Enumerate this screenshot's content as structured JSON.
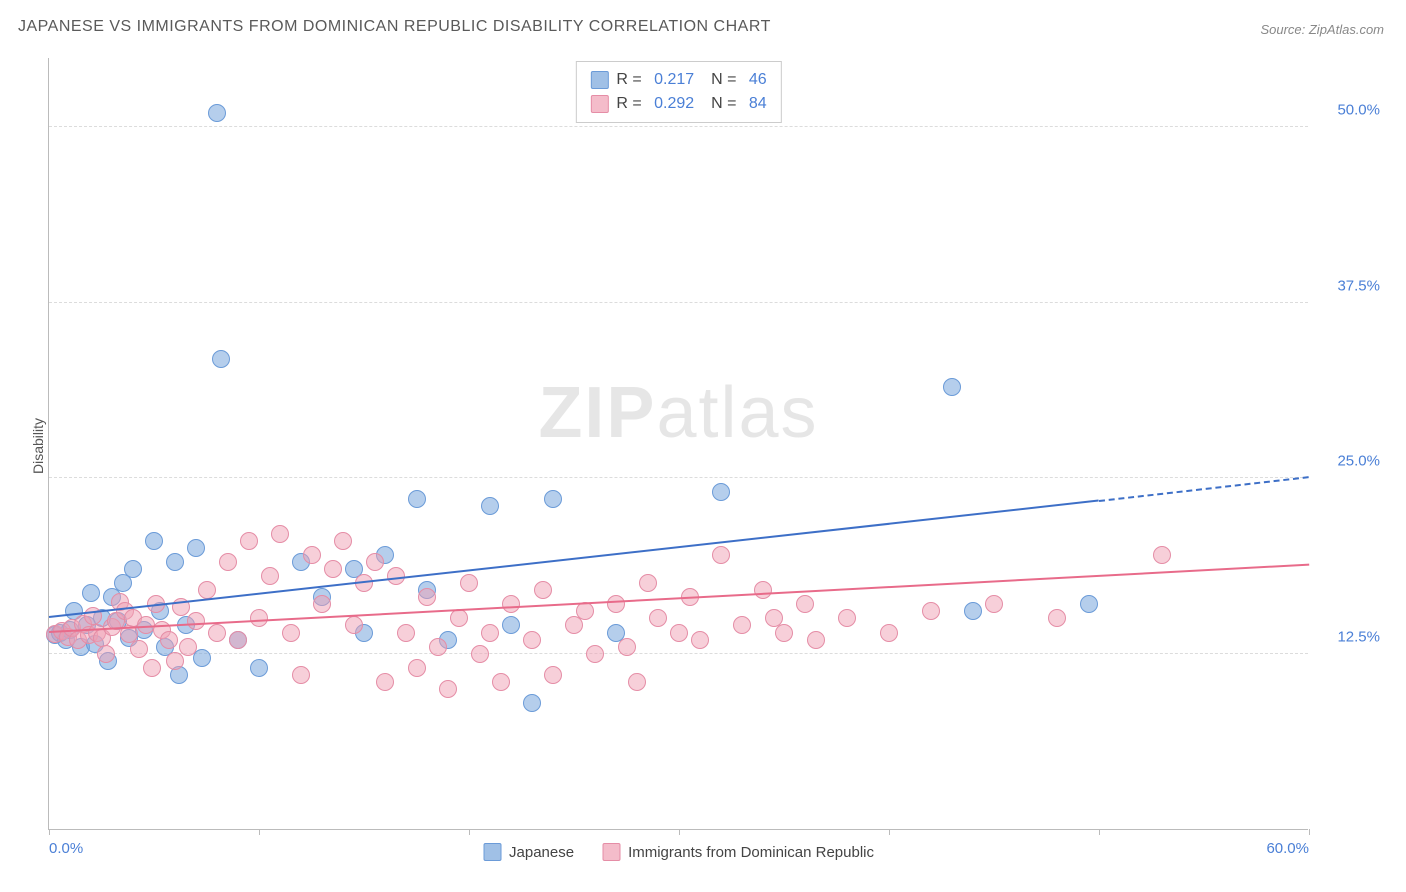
{
  "title": "JAPANESE VS IMMIGRANTS FROM DOMINICAN REPUBLIC DISABILITY CORRELATION CHART",
  "source": "Source: ZipAtlas.com",
  "ylabel": "Disability",
  "watermark": {
    "bold": "ZIP",
    "rest": "atlas"
  },
  "chart": {
    "type": "scatter",
    "background_color": "#ffffff",
    "grid_color": "#dcdcdc",
    "axis_color": "#bbbbbb",
    "label_color": "#4a7fd6",
    "xlim": [
      0,
      60
    ],
    "ylim": [
      0,
      55
    ],
    "x_ticks": [
      0,
      10,
      20,
      30,
      40,
      50,
      60
    ],
    "x_tick_labels": [
      "0.0%",
      "",
      "",
      "",
      "",
      "",
      "60.0%"
    ],
    "y_grid": [
      12.5,
      25.0,
      37.5,
      50.0
    ],
    "y_tick_labels": [
      "12.5%",
      "25.0%",
      "37.5%",
      "50.0%"
    ],
    "marker_radius": 9,
    "series": [
      {
        "key": "japanese",
        "label": "Japanese",
        "color_fill": "rgba(120,165,220,0.55)",
        "color_stroke": "#6b9bd8",
        "trend_color": "#3d6fc7",
        "R": "0.217",
        "N": "46",
        "trend": {
          "x0": 0,
          "y0": 15.0,
          "x1": 50,
          "y1": 23.3,
          "x_dash_from": 50,
          "x_dash_to": 60,
          "y_dash_to": 25.0
        },
        "points": [
          [
            0.3,
            13.8
          ],
          [
            0.5,
            14.0
          ],
          [
            0.8,
            13.5
          ],
          [
            1.0,
            14.2
          ],
          [
            1.2,
            15.5
          ],
          [
            1.5,
            13.0
          ],
          [
            1.8,
            14.5
          ],
          [
            2.0,
            16.8
          ],
          [
            2.2,
            13.2
          ],
          [
            2.5,
            15.0
          ],
          [
            2.8,
            12.0
          ],
          [
            3.0,
            16.5
          ],
          [
            3.3,
            14.8
          ],
          [
            3.5,
            17.5
          ],
          [
            3.8,
            13.6
          ],
          [
            4.0,
            18.5
          ],
          [
            4.5,
            14.2
          ],
          [
            5.0,
            20.5
          ],
          [
            5.3,
            15.5
          ],
          [
            5.5,
            13.0
          ],
          [
            6.0,
            19.0
          ],
          [
            6.2,
            11.0
          ],
          [
            6.5,
            14.5
          ],
          [
            7.0,
            20.0
          ],
          [
            7.3,
            12.2
          ],
          [
            8.0,
            51.0
          ],
          [
            8.2,
            33.5
          ],
          [
            9.0,
            13.5
          ],
          [
            10.0,
            11.5
          ],
          [
            12.0,
            19.0
          ],
          [
            13.0,
            16.5
          ],
          [
            14.5,
            18.5
          ],
          [
            15.0,
            14.0
          ],
          [
            16.0,
            19.5
          ],
          [
            17.5,
            23.5
          ],
          [
            18.0,
            17.0
          ],
          [
            19.0,
            13.5
          ],
          [
            21.0,
            23.0
          ],
          [
            22.0,
            14.5
          ],
          [
            23.0,
            9.0
          ],
          [
            24.0,
            23.5
          ],
          [
            27.0,
            14.0
          ],
          [
            32.0,
            24.0
          ],
          [
            43.0,
            31.5
          ],
          [
            44.0,
            15.5
          ],
          [
            49.5,
            16.0
          ]
        ]
      },
      {
        "key": "dominican",
        "label": "Immigrants from Dominican Republic",
        "color_fill": "rgba(240,160,180,0.50)",
        "color_stroke": "#e58da6",
        "trend_color": "#e86b8a",
        "R": "0.292",
        "N": "84",
        "trend": {
          "x0": 0,
          "y0": 14.0,
          "x1": 60,
          "y1": 18.8
        },
        "points": [
          [
            0.3,
            13.9
          ],
          [
            0.6,
            14.1
          ],
          [
            0.9,
            13.7
          ],
          [
            1.1,
            14.3
          ],
          [
            1.4,
            13.5
          ],
          [
            1.6,
            14.6
          ],
          [
            1.9,
            13.8
          ],
          [
            2.1,
            15.2
          ],
          [
            2.3,
            14.0
          ],
          [
            2.5,
            13.6
          ],
          [
            2.7,
            12.5
          ],
          [
            3.0,
            14.4
          ],
          [
            3.2,
            14.8
          ],
          [
            3.4,
            16.2
          ],
          [
            3.6,
            15.5
          ],
          [
            3.8,
            13.9
          ],
          [
            4.0,
            15.0
          ],
          [
            4.3,
            12.8
          ],
          [
            4.6,
            14.5
          ],
          [
            4.9,
            11.5
          ],
          [
            5.1,
            16.0
          ],
          [
            5.4,
            14.2
          ],
          [
            5.7,
            13.5
          ],
          [
            6.0,
            12.0
          ],
          [
            6.3,
            15.8
          ],
          [
            6.6,
            13.0
          ],
          [
            7.0,
            14.8
          ],
          [
            7.5,
            17.0
          ],
          [
            8.0,
            14.0
          ],
          [
            8.5,
            19.0
          ],
          [
            9.0,
            13.5
          ],
          [
            9.5,
            20.5
          ],
          [
            10.0,
            15.0
          ],
          [
            10.5,
            18.0
          ],
          [
            11.0,
            21.0
          ],
          [
            11.5,
            14.0
          ],
          [
            12.0,
            11.0
          ],
          [
            12.5,
            19.5
          ],
          [
            13.0,
            16.0
          ],
          [
            13.5,
            18.5
          ],
          [
            14.0,
            20.5
          ],
          [
            14.5,
            14.5
          ],
          [
            15.0,
            17.5
          ],
          [
            15.5,
            19.0
          ],
          [
            16.0,
            10.5
          ],
          [
            16.5,
            18.0
          ],
          [
            17.0,
            14.0
          ],
          [
            17.5,
            11.5
          ],
          [
            18.0,
            16.5
          ],
          [
            18.5,
            13.0
          ],
          [
            19.0,
            10.0
          ],
          [
            19.5,
            15.0
          ],
          [
            20.0,
            17.5
          ],
          [
            20.5,
            12.5
          ],
          [
            21.0,
            14.0
          ],
          [
            21.5,
            10.5
          ],
          [
            22.0,
            16.0
          ],
          [
            23.0,
            13.5
          ],
          [
            23.5,
            17.0
          ],
          [
            24.0,
            11.0
          ],
          [
            25.0,
            14.5
          ],
          [
            25.5,
            15.5
          ],
          [
            26.0,
            12.5
          ],
          [
            27.0,
            16.0
          ],
          [
            27.5,
            13.0
          ],
          [
            28.0,
            10.5
          ],
          [
            28.5,
            17.5
          ],
          [
            29.0,
            15.0
          ],
          [
            30.0,
            14.0
          ],
          [
            30.5,
            16.5
          ],
          [
            31.0,
            13.5
          ],
          [
            32.0,
            19.5
          ],
          [
            33.0,
            14.5
          ],
          [
            34.0,
            17.0
          ],
          [
            34.5,
            15.0
          ],
          [
            35.0,
            14.0
          ],
          [
            36.0,
            16.0
          ],
          [
            36.5,
            13.5
          ],
          [
            38.0,
            15.0
          ],
          [
            40.0,
            14.0
          ],
          [
            42.0,
            15.5
          ],
          [
            45.0,
            16.0
          ],
          [
            48.0,
            15.0
          ],
          [
            53.0,
            19.5
          ]
        ]
      }
    ]
  },
  "legend": {
    "items": [
      "Japanese",
      "Immigrants from Dominican Republic"
    ]
  }
}
